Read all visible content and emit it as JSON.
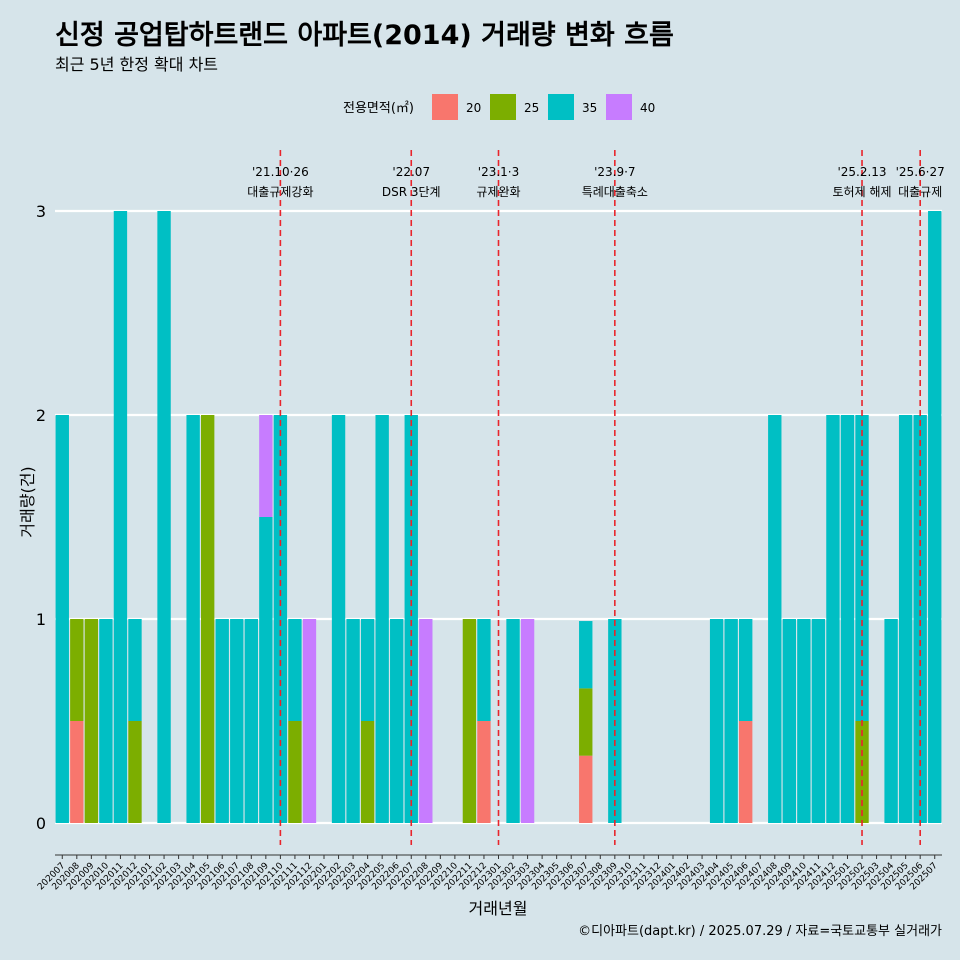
{
  "chart_data": {
    "type": "bar",
    "stacked": true,
    "title": "신정 공업탑하트랜드 아파트(2014) 거래량 변화 흐름",
    "subtitle": "최근 5년 한정 확대 차트",
    "xlabel": "거래년월",
    "ylabel": "거래량(건)",
    "ylim": [
      0,
      3
    ],
    "yticks": [
      0,
      1,
      2,
      3
    ],
    "legend": {
      "title": "전용면적(㎡)",
      "position": "top",
      "entries": [
        {
          "name": "20",
          "color": "#f8766d"
        },
        {
          "name": "25",
          "color": "#7cae00"
        },
        {
          "name": "35",
          "color": "#00bfc4"
        },
        {
          "name": "40",
          "color": "#c77cff"
        }
      ]
    },
    "categories": [
      "202007",
      "202008",
      "202009",
      "202010",
      "202011",
      "202012",
      "202101",
      "202102",
      "202103",
      "202104",
      "202105",
      "202106",
      "202107",
      "202108",
      "202109",
      "202110",
      "202111",
      "202112",
      "202201",
      "202202",
      "202203",
      "202204",
      "202205",
      "202206",
      "202207",
      "202208",
      "202209",
      "202210",
      "202211",
      "202212",
      "202301",
      "202302",
      "202303",
      "202304",
      "202305",
      "202306",
      "202307",
      "202308",
      "202309",
      "202310",
      "202311",
      "202312",
      "202401",
      "202402",
      "202403",
      "202404",
      "202405",
      "202406",
      "202407",
      "202408",
      "202409",
      "202410",
      "202411",
      "202412",
      "202501",
      "202502",
      "202503",
      "202504",
      "202505",
      "202506",
      "202507"
    ],
    "series": [
      {
        "name": "20",
        "values": [
          0,
          0.5,
          0,
          0,
          0,
          0,
          0,
          0,
          0,
          0,
          0,
          0,
          0,
          0,
          0,
          0,
          0,
          0,
          0,
          0,
          0,
          0,
          0,
          0,
          0,
          0,
          0,
          0,
          0,
          0.5,
          0,
          0,
          0,
          0,
          0,
          0,
          0.33,
          0,
          0,
          0,
          0,
          0,
          0,
          0,
          0,
          0,
          0,
          0.5,
          0,
          0,
          0,
          0,
          0,
          0,
          0,
          0,
          0,
          0,
          0,
          0,
          0
        ]
      },
      {
        "name": "25",
        "values": [
          0,
          0.5,
          1,
          0,
          0,
          0.5,
          0,
          0,
          0,
          0,
          2,
          0,
          0,
          0,
          0,
          0,
          0.5,
          0,
          0,
          0,
          0,
          0.5,
          0,
          0,
          0,
          0,
          0,
          0,
          1,
          0,
          0,
          0,
          0,
          0,
          0,
          0,
          0.33,
          0,
          0,
          0,
          0,
          0,
          0,
          0,
          0,
          0,
          0,
          0,
          0,
          0,
          0,
          0,
          0,
          0,
          0,
          0.5,
          0,
          0,
          0,
          0,
          0
        ]
      },
      {
        "name": "35",
        "values": [
          2,
          0,
          0,
          1,
          3,
          0.5,
          0,
          3,
          0,
          2,
          0,
          1,
          1,
          1,
          1.5,
          2,
          0.5,
          0,
          0,
          2,
          1,
          0.5,
          2,
          1,
          2,
          0,
          0,
          0,
          0,
          0.5,
          0,
          1,
          0,
          0,
          0,
          0,
          0.33,
          0,
          1,
          0,
          0,
          0,
          0,
          0,
          0,
          1,
          1,
          0.5,
          0,
          2,
          1,
          1,
          1,
          2,
          2,
          1.5,
          0,
          1,
          2,
          2,
          3
        ]
      },
      {
        "name": "40",
        "values": [
          0,
          0,
          0,
          0,
          0,
          0,
          0,
          0,
          0,
          0,
          0,
          0,
          0,
          0,
          0.5,
          0,
          0,
          1,
          0,
          0,
          0,
          0,
          0,
          0,
          0,
          1,
          0,
          0,
          0,
          0,
          0,
          0,
          1,
          0,
          0,
          0,
          0,
          0,
          0,
          0,
          0,
          0,
          0,
          0,
          0,
          0,
          0,
          0,
          0,
          0,
          0,
          0,
          0,
          0,
          0,
          0,
          0,
          0,
          0,
          0,
          0
        ]
      }
    ],
    "events": [
      {
        "date": "202110",
        "label1": "'21.10·26",
        "label2": "대출규제강화"
      },
      {
        "date": "202207",
        "label1": "'22.07",
        "label2": "DSR 3단계"
      },
      {
        "date": "202301",
        "label1": "'23.1·3",
        "label2": "규제완화"
      },
      {
        "date": "202309",
        "label1": "'23.9·7",
        "label2": "특례대출축소"
      },
      {
        "date": "202502",
        "label1": "'25.2.13",
        "label2": "토허제 해제"
      },
      {
        "date": "202506",
        "label1": "'25.6·27",
        "label2": "대출규제"
      }
    ],
    "grid": true,
    "caption": "©디아파트(dapt.kr) / 2025.07.29 / 자료=국토교통부 실거래가"
  }
}
